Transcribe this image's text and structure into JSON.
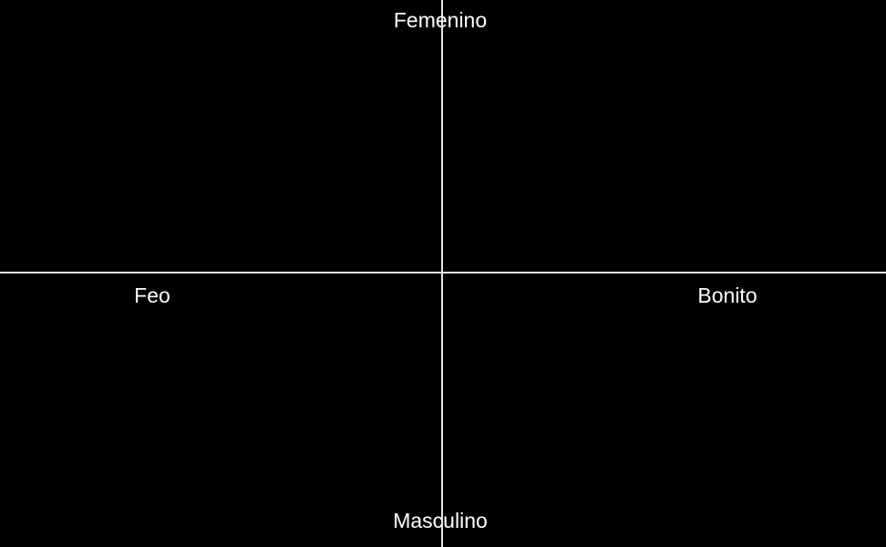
{
  "axes": {
    "vertical": {
      "top_label": "Femenino",
      "bottom_label": "Masculino"
    },
    "horizontal": {
      "left_label": "Feo",
      "right_label": "Bonito"
    }
  },
  "colors": {
    "background": "#000000",
    "axis_line": "#e6e6e6",
    "label_text": "#ffffff"
  }
}
